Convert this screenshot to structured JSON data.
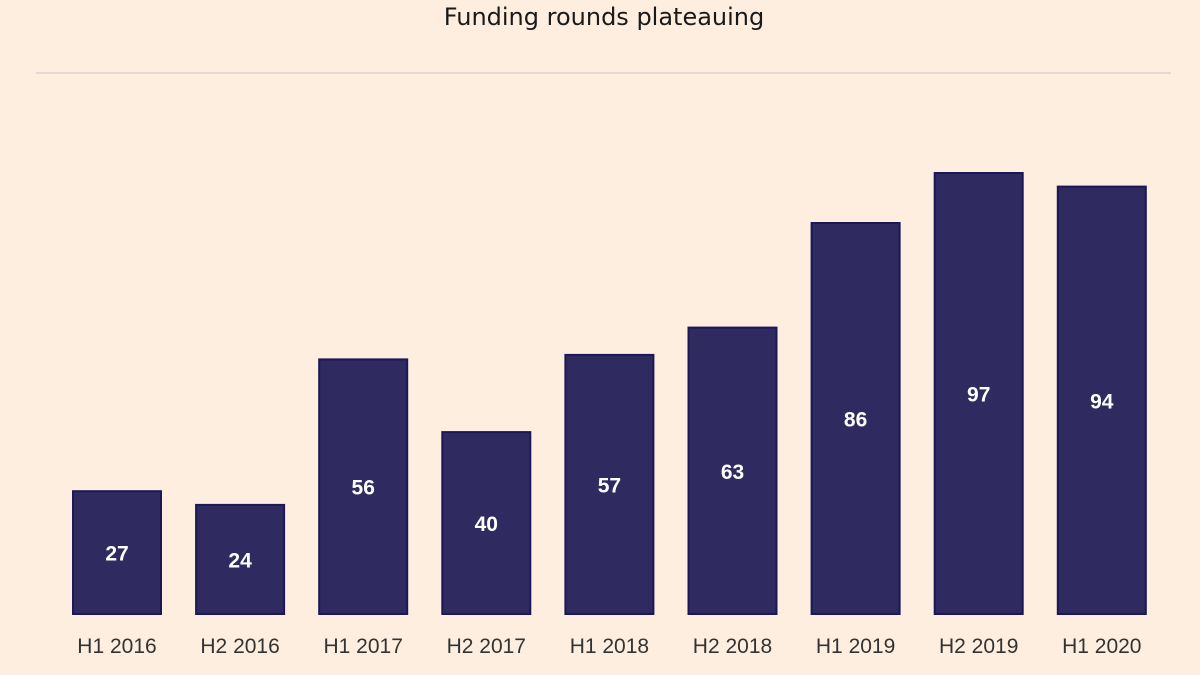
{
  "chart_data": {
    "type": "bar",
    "title": "Funding rounds plateauing",
    "categories": [
      "H1 2016",
      "H2 2016",
      "H1 2017",
      "H2 2017",
      "H1 2018",
      "H2 2018",
      "H1 2019",
      "H2 2019",
      "H1 2020"
    ],
    "values": [
      27,
      24,
      56,
      40,
      57,
      63,
      86,
      97,
      94
    ],
    "xlabel": "",
    "ylabel": "",
    "ylim": [
      0,
      97
    ],
    "grid": false,
    "legend": "none",
    "colors": {
      "bar": "#2f2a5f",
      "background": "#fdeee0",
      "label": "#ffffff"
    }
  }
}
